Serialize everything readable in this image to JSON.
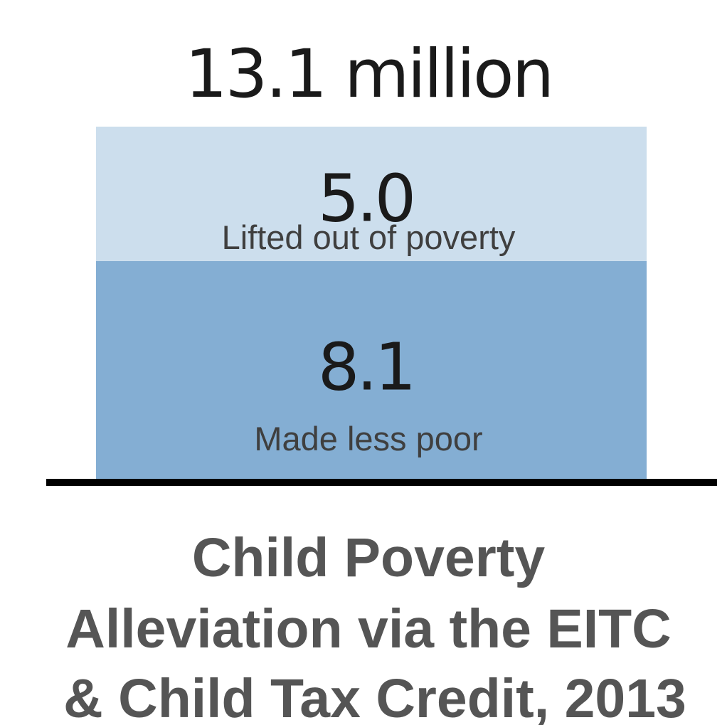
{
  "chart_data": {
    "type": "bar",
    "stacked": true,
    "categories": [
      "2013"
    ],
    "total": 13.1,
    "total_label": "13.1 million",
    "series": [
      {
        "name": "Made less poor",
        "values": [
          8.1
        ],
        "value_label": "8.1",
        "color": "#84aed3"
      },
      {
        "name": "Lifted out of poverty",
        "values": [
          5.0
        ],
        "value_label": "5.0",
        "color": "#ccdeed"
      }
    ],
    "title": [
      "Child Poverty",
      "Alleviation via the EITC",
      "& Child Tax Credit, 2013"
    ],
    "baseline_color": "#000000",
    "ylim": [
      0,
      13.1
    ],
    "grid": false
  }
}
